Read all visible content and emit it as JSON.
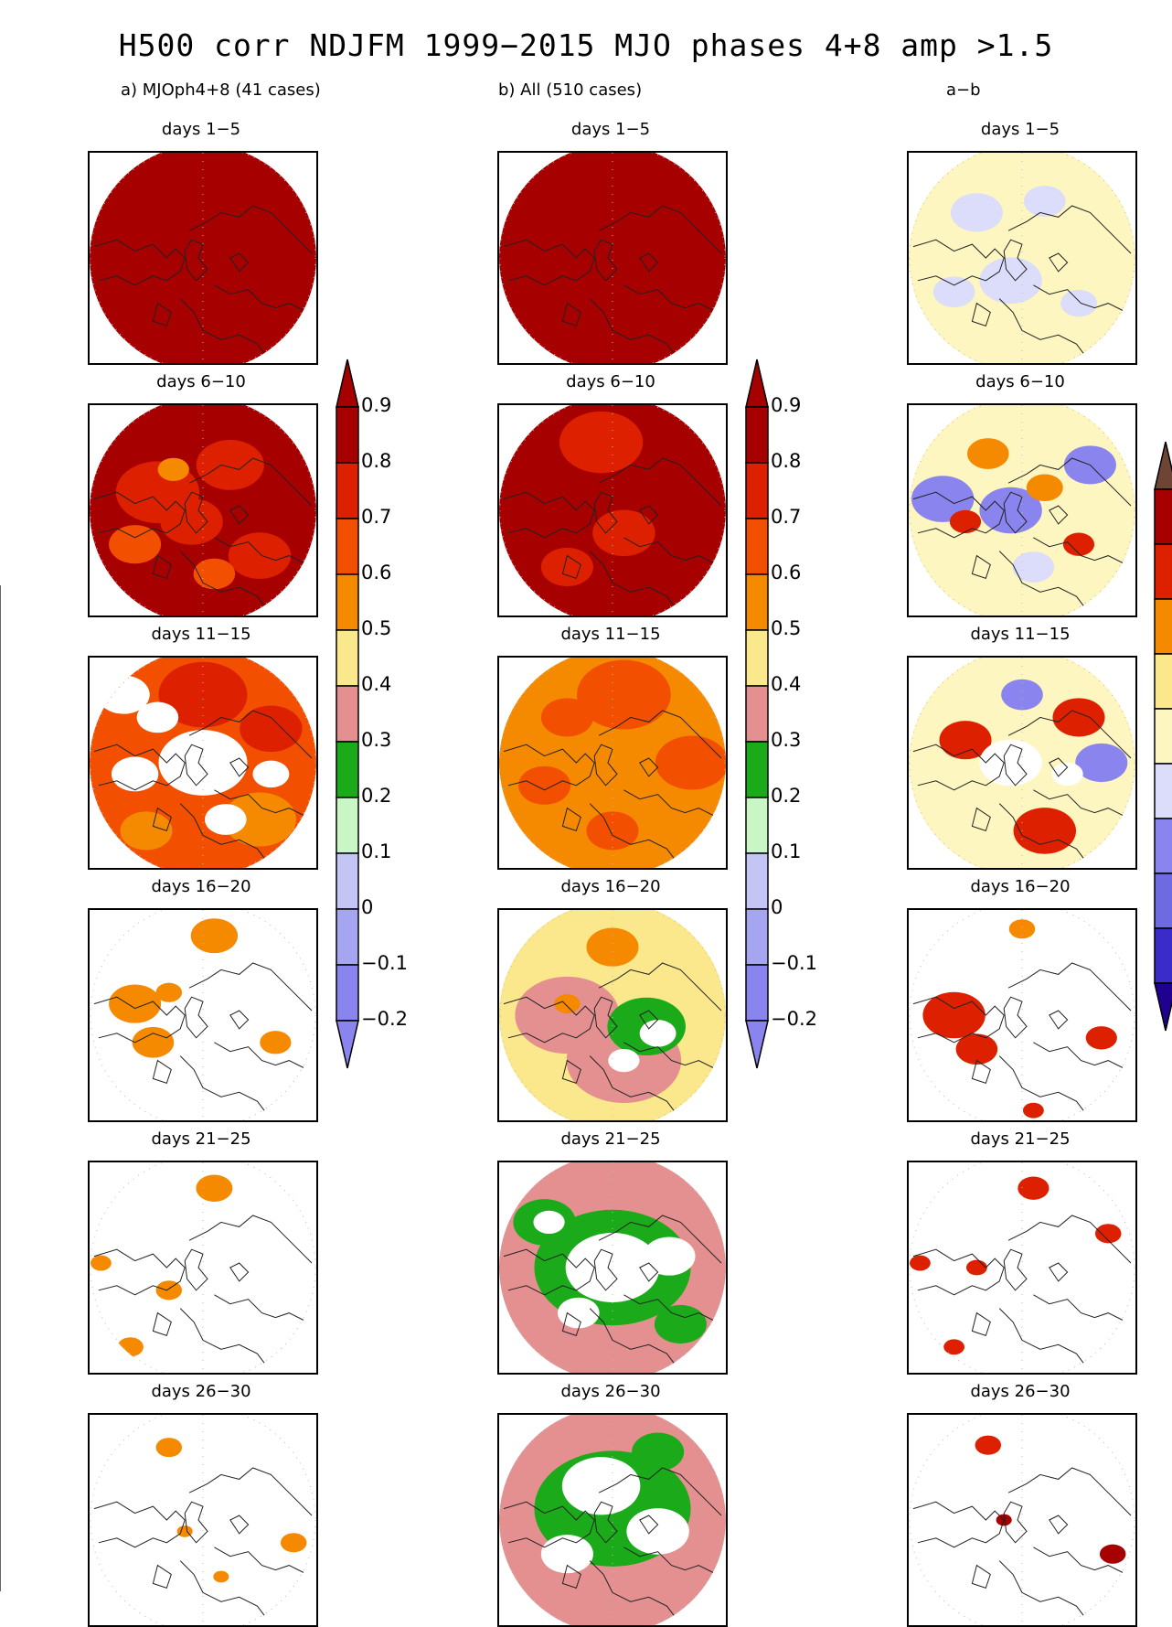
{
  "title": "H500 corr NDJFM 1999−2015 MJO phases 4+8 amp >1.5",
  "colors": {
    "brown": "#6e4535",
    "darkred": "#a60000",
    "red": "#dd2100",
    "orangered": "#f25000",
    "orange": "#f58a00",
    "yellow": "#fce88c",
    "pink": "#e49090",
    "green": "#1aaa1a",
    "lightgreen": "#c8f7c5",
    "lavender": "#c4c4f5",
    "lightpurple": "#a5a5f2",
    "purple": "#8a84ee",
    "blue": "#6d6ae2",
    "darkblue": "#3a2cc8",
    "navy": "#200090",
    "paleyellow": "#fdf6c0",
    "palelavender": "#dcdcfb",
    "coast": "#222222",
    "grid": "#bbbbbb"
  },
  "chart_data": {
    "type": "heatmap",
    "title": "H500 corr NDJFM 1999−2015 MJO phases 4+8 amp >1.5",
    "projection": "north-polar-stereographic",
    "rows": [
      "days 1−5",
      "days 6−10",
      "days 11−15",
      "days 16−20",
      "days 21−25",
      "days 26−30"
    ],
    "columns": [
      {
        "label": "a) MJOph4+8 (41 cases)",
        "field": "correlation",
        "panels": [
          {
            "base": "darkred",
            "blobs": []
          },
          {
            "base": "darkred",
            "blobs": [
              {
                "x": 0.3,
                "y": 0.42,
                "r": 0.16,
                "c": "red"
              },
              {
                "x": 0.62,
                "y": 0.3,
                "r": 0.13,
                "c": "red"
              },
              {
                "x": 0.2,
                "y": 0.65,
                "r": 0.1,
                "c": "orangered"
              },
              {
                "x": 0.45,
                "y": 0.55,
                "r": 0.12,
                "c": "red"
              },
              {
                "x": 0.75,
                "y": 0.7,
                "r": 0.12,
                "c": "red"
              },
              {
                "x": 0.55,
                "y": 0.78,
                "r": 0.08,
                "c": "orangered"
              },
              {
                "x": 0.37,
                "y": 0.32,
                "r": 0.06,
                "c": "orange"
              }
            ]
          },
          {
            "base": "orangered",
            "blobs": [
              {
                "x": 0.5,
                "y": 0.2,
                "r": 0.17,
                "c": "red"
              },
              {
                "x": 0.8,
                "y": 0.35,
                "r": 0.12,
                "c": "red"
              },
              {
                "x": 0.75,
                "y": 0.75,
                "r": 0.14,
                "c": "orange"
              },
              {
                "x": 0.25,
                "y": 0.8,
                "r": 0.1,
                "c": "orange"
              },
              {
                "x": 0.5,
                "y": 0.5,
                "r": 0.17,
                "c": "white"
              },
              {
                "x": 0.2,
                "y": 0.55,
                "r": 0.09,
                "c": "white"
              },
              {
                "x": 0.3,
                "y": 0.3,
                "r": 0.08,
                "c": "white"
              },
              {
                "x": 0.6,
                "y": 0.75,
                "r": 0.08,
                "c": "white"
              },
              {
                "x": 0.8,
                "y": 0.55,
                "r": 0.07,
                "c": "white"
              },
              {
                "x": 0.15,
                "y": 0.2,
                "r": 0.1,
                "c": "white"
              }
            ]
          },
          {
            "base": "white",
            "blobs": [
              {
                "x": 0.55,
                "y": 0.15,
                "r": 0.09,
                "c": "orange"
              },
              {
                "x": 0.2,
                "y": 0.45,
                "r": 0.1,
                "c": "orange"
              },
              {
                "x": 0.28,
                "y": 0.62,
                "r": 0.08,
                "c": "orange"
              },
              {
                "x": 0.82,
                "y": 0.62,
                "r": 0.06,
                "c": "orange"
              },
              {
                "x": 0.35,
                "y": 0.4,
                "r": 0.05,
                "c": "orange"
              }
            ]
          },
          {
            "base": "white",
            "blobs": [
              {
                "x": 0.55,
                "y": 0.15,
                "r": 0.07,
                "c": "orange"
              },
              {
                "x": 0.35,
                "y": 0.6,
                "r": 0.05,
                "c": "orange"
              },
              {
                "x": 0.05,
                "y": 0.48,
                "r": 0.04,
                "c": "orange"
              },
              {
                "x": 0.18,
                "y": 0.85,
                "r": 0.05,
                "c": "orange"
              }
            ]
          },
          {
            "base": "white",
            "blobs": [
              {
                "x": 0.35,
                "y": 0.18,
                "r": 0.05,
                "c": "orange"
              },
              {
                "x": 0.9,
                "y": 0.6,
                "r": 0.05,
                "c": "orange"
              },
              {
                "x": 0.42,
                "y": 0.55,
                "r": 0.03,
                "c": "orange"
              },
              {
                "x": 0.58,
                "y": 0.75,
                "r": 0.03,
                "c": "orange"
              }
            ]
          }
        ]
      },
      {
        "label": "b) All (510 cases)",
        "field": "correlation",
        "panels": [
          {
            "base": "darkred",
            "blobs": []
          },
          {
            "base": "darkred",
            "blobs": [
              {
                "x": 0.45,
                "y": 0.2,
                "r": 0.16,
                "c": "red"
              },
              {
                "x": 0.55,
                "y": 0.6,
                "r": 0.12,
                "c": "red"
              },
              {
                "x": 0.3,
                "y": 0.75,
                "r": 0.1,
                "c": "red"
              }
            ]
          },
          {
            "base": "orange",
            "blobs": [
              {
                "x": 0.55,
                "y": 0.2,
                "r": 0.18,
                "c": "orangered"
              },
              {
                "x": 0.85,
                "y": 0.5,
                "r": 0.14,
                "c": "orangered"
              },
              {
                "x": 0.3,
                "y": 0.3,
                "r": 0.1,
                "c": "orangered"
              },
              {
                "x": 0.5,
                "y": 0.8,
                "r": 0.1,
                "c": "orangered"
              },
              {
                "x": 0.2,
                "y": 0.6,
                "r": 0.1,
                "c": "orangered"
              }
            ]
          },
          {
            "base": "yellow",
            "blobs": [
              {
                "x": 0.3,
                "y": 0.5,
                "r": 0.2,
                "c": "pink"
              },
              {
                "x": 0.55,
                "y": 0.7,
                "r": 0.22,
                "c": "pink"
              },
              {
                "x": 0.5,
                "y": 0.2,
                "r": 0.1,
                "c": "orange"
              },
              {
                "x": 0.65,
                "y": 0.55,
                "r": 0.15,
                "c": "green"
              },
              {
                "x": 0.7,
                "y": 0.58,
                "r": 0.07,
                "c": "white"
              },
              {
                "x": 0.55,
                "y": 0.7,
                "r": 0.06,
                "c": "white"
              },
              {
                "x": 0.3,
                "y": 0.45,
                "r": 0.05,
                "c": "orange"
              }
            ]
          },
          {
            "base": "pink",
            "blobs": [
              {
                "x": 0.5,
                "y": 0.5,
                "r": 0.3,
                "c": "green"
              },
              {
                "x": 0.5,
                "y": 0.5,
                "r": 0.18,
                "c": "white"
              },
              {
                "x": 0.2,
                "y": 0.3,
                "r": 0.12,
                "c": "green"
              },
              {
                "x": 0.22,
                "y": 0.3,
                "r": 0.06,
                "c": "white"
              },
              {
                "x": 0.75,
                "y": 0.45,
                "r": 0.1,
                "c": "white"
              },
              {
                "x": 0.35,
                "y": 0.7,
                "r": 0.08,
                "c": "white"
              },
              {
                "x": 0.8,
                "y": 0.75,
                "r": 0.1,
                "c": "green"
              }
            ]
          },
          {
            "base": "pink",
            "blobs": [
              {
                "x": 0.5,
                "y": 0.45,
                "r": 0.3,
                "c": "green"
              },
              {
                "x": 0.45,
                "y": 0.35,
                "r": 0.15,
                "c": "white"
              },
              {
                "x": 0.7,
                "y": 0.55,
                "r": 0.12,
                "c": "white"
              },
              {
                "x": 0.3,
                "y": 0.65,
                "r": 0.1,
                "c": "white"
              },
              {
                "x": 0.7,
                "y": 0.2,
                "r": 0.1,
                "c": "green"
              }
            ]
          }
        ]
      },
      {
        "label": "a−b",
        "field": "difference",
        "panels": [
          {
            "base": "paleyellow",
            "blobs": [
              {
                "x": 0.3,
                "y": 0.3,
                "r": 0.1,
                "c": "palelavender"
              },
              {
                "x": 0.6,
                "y": 0.25,
                "r": 0.08,
                "c": "palelavender"
              },
              {
                "x": 0.45,
                "y": 0.6,
                "r": 0.12,
                "c": "palelavender"
              },
              {
                "x": 0.2,
                "y": 0.65,
                "r": 0.08,
                "c": "palelavender"
              },
              {
                "x": 0.75,
                "y": 0.7,
                "r": 0.07,
                "c": "palelavender"
              }
            ]
          },
          {
            "base": "paleyellow",
            "blobs": [
              {
                "x": 0.15,
                "y": 0.45,
                "r": 0.12,
                "c": "purple"
              },
              {
                "x": 0.45,
                "y": 0.5,
                "r": 0.12,
                "c": "purple"
              },
              {
                "x": 0.8,
                "y": 0.3,
                "r": 0.1,
                "c": "purple"
              },
              {
                "x": 0.35,
                "y": 0.25,
                "r": 0.08,
                "c": "orange"
              },
              {
                "x": 0.6,
                "y": 0.4,
                "r": 0.07,
                "c": "orange"
              },
              {
                "x": 0.25,
                "y": 0.55,
                "r": 0.06,
                "c": "red"
              },
              {
                "x": 0.75,
                "y": 0.65,
                "r": 0.06,
                "c": "red"
              },
              {
                "x": 0.55,
                "y": 0.75,
                "r": 0.08,
                "c": "palelavender"
              }
            ]
          },
          {
            "base": "paleyellow",
            "blobs": [
              {
                "x": 0.25,
                "y": 0.4,
                "r": 0.1,
                "c": "red"
              },
              {
                "x": 0.75,
                "y": 0.3,
                "r": 0.1,
                "c": "red"
              },
              {
                "x": 0.6,
                "y": 0.8,
                "r": 0.12,
                "c": "red"
              },
              {
                "x": 0.85,
                "y": 0.5,
                "r": 0.1,
                "c": "purple"
              },
              {
                "x": 0.5,
                "y": 0.2,
                "r": 0.08,
                "c": "purple"
              },
              {
                "x": 0.45,
                "y": 0.5,
                "r": 0.12,
                "c": "white"
              },
              {
                "x": 0.7,
                "y": 0.55,
                "r": 0.06,
                "c": "white"
              }
            ]
          },
          {
            "base": "white",
            "blobs": [
              {
                "x": 0.2,
                "y": 0.5,
                "r": 0.12,
                "c": "red"
              },
              {
                "x": 0.3,
                "y": 0.65,
                "r": 0.08,
                "c": "red"
              },
              {
                "x": 0.85,
                "y": 0.6,
                "r": 0.06,
                "c": "red"
              },
              {
                "x": 0.5,
                "y": 0.12,
                "r": 0.05,
                "c": "orange"
              },
              {
                "x": 0.55,
                "y": 0.92,
                "r": 0.04,
                "c": "red"
              }
            ]
          },
          {
            "base": "white",
            "blobs": [
              {
                "x": 0.55,
                "y": 0.15,
                "r": 0.06,
                "c": "red"
              },
              {
                "x": 0.88,
                "y": 0.35,
                "r": 0.05,
                "c": "red"
              },
              {
                "x": 0.05,
                "y": 0.48,
                "r": 0.04,
                "c": "red"
              },
              {
                "x": 0.3,
                "y": 0.5,
                "r": 0.04,
                "c": "red"
              },
              {
                "x": 0.2,
                "y": 0.85,
                "r": 0.04,
                "c": "red"
              }
            ]
          },
          {
            "base": "white",
            "blobs": [
              {
                "x": 0.35,
                "y": 0.17,
                "r": 0.05,
                "c": "red"
              },
              {
                "x": 0.9,
                "y": 0.65,
                "r": 0.05,
                "c": "darkred"
              },
              {
                "x": 0.42,
                "y": 0.5,
                "r": 0.03,
                "c": "darkred"
              }
            ]
          }
        ]
      }
    ],
    "colorbars": [
      {
        "levels": [
          "0.9",
          "0.8",
          "0.7",
          "0.6",
          "0.5",
          "0.4",
          "0.3",
          "0.2",
          "0.1",
          "0",
          "−0.1",
          "−0.2"
        ],
        "colors": [
          "darkred",
          "darkred",
          "red",
          "orangered",
          "orange",
          "yellow",
          "pink",
          "green",
          "lightgreen",
          "lavender",
          "lightpurple",
          "purple"
        ]
      },
      {
        "levels": [],
        "colors": [
          "brown",
          "darkred",
          "red",
          "orange",
          "yellow",
          "paleyellow",
          "palelavender",
          "purple",
          "blue",
          "darkblue",
          "navy"
        ]
      }
    ]
  }
}
